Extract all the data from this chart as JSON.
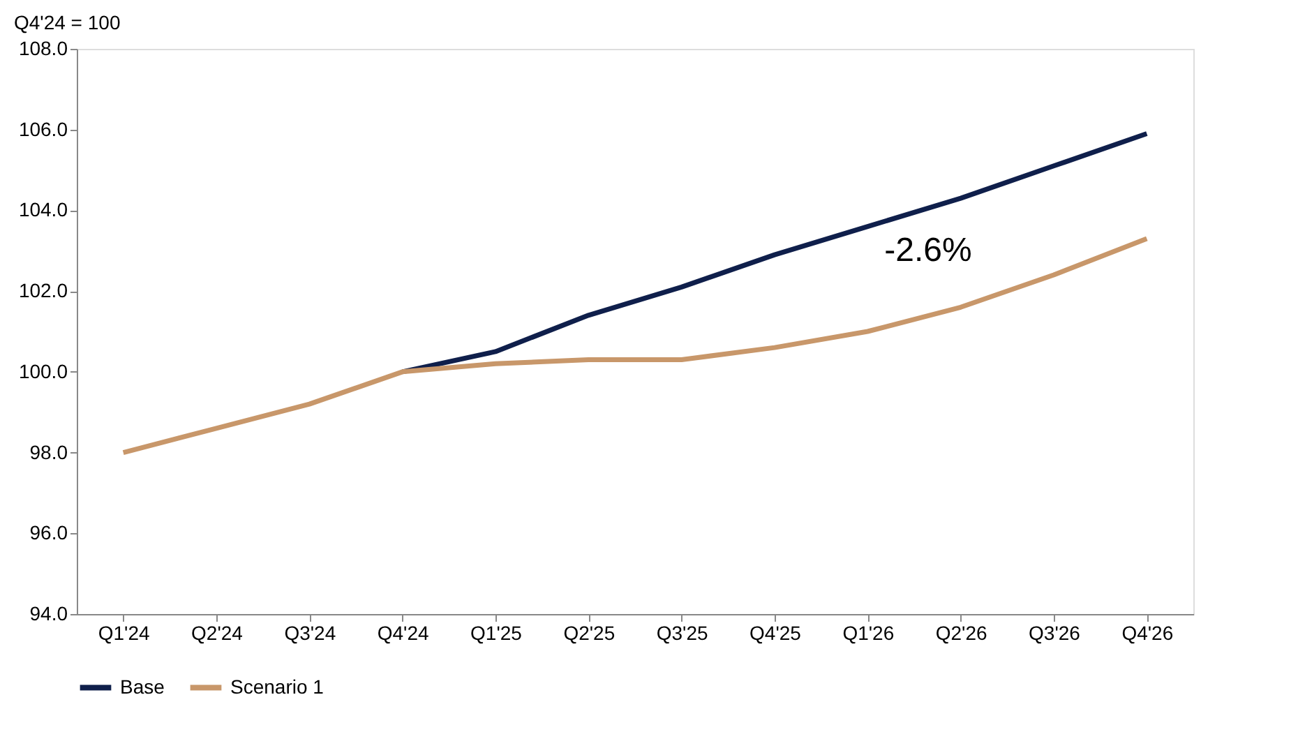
{
  "chart_data": {
    "type": "line",
    "ylabel": "Q4'24 = 100",
    "categories": [
      "Q1'24",
      "Q2'24",
      "Q3'24",
      "Q4'24",
      "Q1'25",
      "Q2'25",
      "Q3'25",
      "Q4'25",
      "Q1'26",
      "Q2'26",
      "Q3'26",
      "Q4'26"
    ],
    "series": [
      {
        "name": "Base",
        "color": "#0f1f4b",
        "values": [
          null,
          null,
          null,
          100.0,
          100.5,
          101.4,
          102.1,
          102.9,
          103.6,
          104.3,
          105.1,
          105.9
        ]
      },
      {
        "name": "Scenario 1",
        "color": "#c8976a",
        "values": [
          98.0,
          98.6,
          99.2,
          100.0,
          100.2,
          100.3,
          100.3,
          100.6,
          101.0,
          101.6,
          102.4,
          103.3
        ]
      }
    ],
    "ylim": [
      94,
      108
    ],
    "yticks": [
      {
        "value": 94,
        "label": "94.0"
      },
      {
        "value": 96,
        "label": "96.0"
      },
      {
        "value": 98,
        "label": "98.0"
      },
      {
        "value": 100,
        "label": "100.0"
      },
      {
        "value": 102,
        "label": "102.0"
      },
      {
        "value": 104,
        "label": "104.0"
      },
      {
        "value": 106,
        "label": "106.0"
      },
      {
        "value": 108,
        "label": "108.0"
      }
    ],
    "annotations": [
      "-2.6%"
    ],
    "grid": false,
    "legend": "bottom",
    "marker": "none",
    "line_style": "solid"
  }
}
